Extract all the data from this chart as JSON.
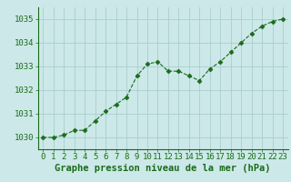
{
  "x": [
    0,
    1,
    2,
    3,
    4,
    5,
    6,
    7,
    8,
    9,
    10,
    11,
    12,
    13,
    14,
    15,
    16,
    17,
    18,
    19,
    20,
    21,
    22,
    23
  ],
  "y": [
    1030.0,
    1030.0,
    1030.1,
    1030.3,
    1030.3,
    1030.7,
    1031.1,
    1031.4,
    1031.7,
    1032.6,
    1033.1,
    1033.2,
    1032.8,
    1032.8,
    1032.6,
    1032.4,
    1032.9,
    1033.2,
    1033.6,
    1034.0,
    1034.4,
    1034.7,
    1034.9,
    1035.0
  ],
  "line_color": "#1a6b1a",
  "marker": "D",
  "marker_size": 2.5,
  "background_color": "#cce8e8",
  "grid_color": "#aacece",
  "xlabel": "Graphe pression niveau de la mer (hPa)",
  "xlabel_color": "#1a6b1a",
  "xlabel_fontsize": 7.5,
  "tick_color": "#1a6b1a",
  "tick_fontsize": 6.5,
  "ylim": [
    1029.5,
    1035.5
  ],
  "yticks": [
    1030,
    1031,
    1032,
    1033,
    1034,
    1035
  ],
  "xlim": [
    -0.5,
    23.5
  ],
  "xticks": [
    0,
    1,
    2,
    3,
    4,
    5,
    6,
    7,
    8,
    9,
    10,
    11,
    12,
    13,
    14,
    15,
    16,
    17,
    18,
    19,
    20,
    21,
    22,
    23
  ]
}
